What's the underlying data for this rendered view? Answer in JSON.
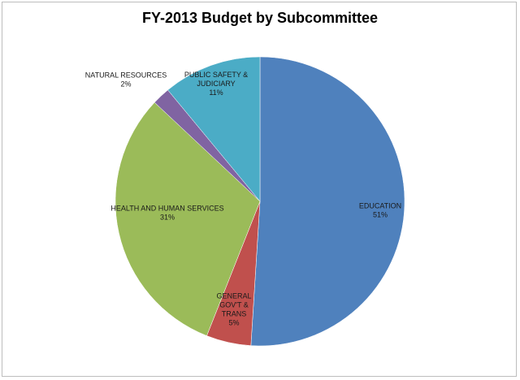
{
  "chart_data": {
    "type": "pie",
    "title": "FY-2013 Budget by Subcommittee",
    "slices": [
      {
        "label": [
          "EDUCATION"
        ],
        "pct_label": "51%",
        "value": 51,
        "color": "#4f81bd"
      },
      {
        "label": [
          "GENERAL",
          "GOV'T &",
          "TRANS"
        ],
        "pct_label": "5%",
        "value": 5,
        "color": "#c0504d"
      },
      {
        "label": [
          "HEALTH AND HUMAN SERVICES"
        ],
        "pct_label": "31%",
        "value": 31,
        "color": "#9bbb59"
      },
      {
        "label": [
          "NATURAL RESOURCES"
        ],
        "pct_label": "2%",
        "value": 2,
        "color": "#8064a2"
      },
      {
        "label": [
          "PUBLIC SAFETY &",
          "JUDICIARY"
        ],
        "pct_label": "11%",
        "value": 11,
        "color": "#4bacc6"
      }
    ]
  }
}
